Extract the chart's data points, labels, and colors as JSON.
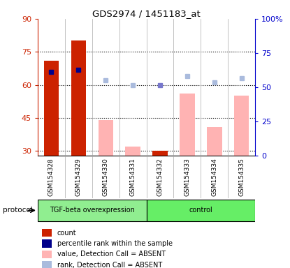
{
  "title": "GDS2974 / 1451183_at",
  "samples": [
    "GSM154328",
    "GSM154329",
    "GSM154330",
    "GSM154331",
    "GSM154332",
    "GSM154333",
    "GSM154334",
    "GSM154335"
  ],
  "group_labels": [
    "TGF-beta overexpression",
    "control"
  ],
  "group_split": 4,
  "group_color_tgf": "#90EE90",
  "group_color_ctrl": "#66EE66",
  "count_values": [
    71,
    80,
    null,
    null,
    30,
    null,
    null,
    null
  ],
  "value_absent": [
    null,
    null,
    44,
    32,
    null,
    56,
    41,
    55
  ],
  "rank_dark": [
    66,
    67,
    null,
    null,
    null,
    null,
    null,
    null
  ],
  "rank_mid": [
    null,
    null,
    null,
    null,
    60,
    null,
    null,
    null
  ],
  "rank_absent": [
    null,
    null,
    62,
    60,
    null,
    64,
    61,
    63
  ],
  "ylim_left": [
    28,
    90
  ],
  "ylim_right": [
    0,
    100
  ],
  "yticks_left": [
    30,
    45,
    60,
    75,
    90
  ],
  "ytick_labels_left": [
    "30",
    "45",
    "60",
    "75",
    "90"
  ],
  "yticks_right": [
    0,
    25,
    50,
    75,
    100
  ],
  "ytick_labels_right": [
    "0",
    "25",
    "50",
    "75",
    "100%"
  ],
  "left_color": "#CC2200",
  "right_color": "#0000CC",
  "bar_color_present": "#CC2200",
  "bar_color_absent_val": "#FFB3B3",
  "dot_color_dark": "#00008B",
  "dot_color_mid": "#7777CC",
  "dot_color_absent": "#AABBDD",
  "xtick_bg": "#D3D3D3",
  "legend": [
    {
      "label": "count",
      "color": "#CC2200"
    },
    {
      "label": "percentile rank within the sample",
      "color": "#00008B"
    },
    {
      "label": "value, Detection Call = ABSENT",
      "color": "#FFB3B3"
    },
    {
      "label": "rank, Detection Call = ABSENT",
      "color": "#AABBDD"
    }
  ]
}
